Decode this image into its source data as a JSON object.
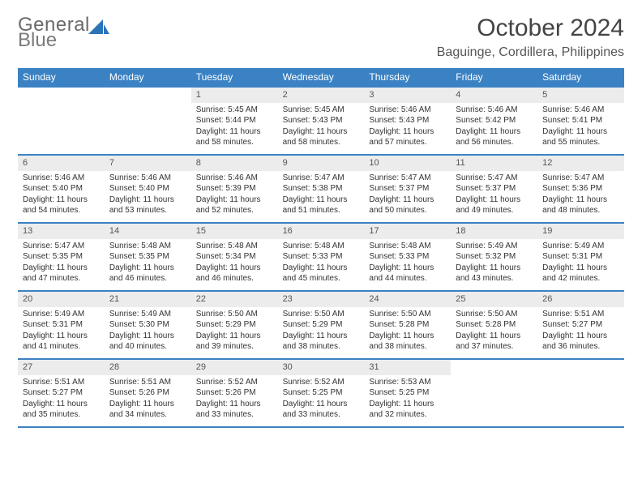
{
  "logo": {
    "word1": "General",
    "word2": "Blue",
    "shape_color": "#2b74b8"
  },
  "title": "October 2024",
  "location": "Baguinge, Cordillera, Philippines",
  "colors": {
    "header_bg": "#3b82c4",
    "header_text": "#ffffff",
    "daynum_bg": "#ececec",
    "border": "#3b82c4",
    "body_text": "#333333"
  },
  "dow": [
    "Sunday",
    "Monday",
    "Tuesday",
    "Wednesday",
    "Thursday",
    "Friday",
    "Saturday"
  ],
  "weeks": [
    [
      {
        "n": "",
        "sr": "",
        "ss": "",
        "dl": ""
      },
      {
        "n": "",
        "sr": "",
        "ss": "",
        "dl": ""
      },
      {
        "n": "1",
        "sr": "Sunrise: 5:45 AM",
        "ss": "Sunset: 5:44 PM",
        "dl": "Daylight: 11 hours and 58 minutes."
      },
      {
        "n": "2",
        "sr": "Sunrise: 5:45 AM",
        "ss": "Sunset: 5:43 PM",
        "dl": "Daylight: 11 hours and 58 minutes."
      },
      {
        "n": "3",
        "sr": "Sunrise: 5:46 AM",
        "ss": "Sunset: 5:43 PM",
        "dl": "Daylight: 11 hours and 57 minutes."
      },
      {
        "n": "4",
        "sr": "Sunrise: 5:46 AM",
        "ss": "Sunset: 5:42 PM",
        "dl": "Daylight: 11 hours and 56 minutes."
      },
      {
        "n": "5",
        "sr": "Sunrise: 5:46 AM",
        "ss": "Sunset: 5:41 PM",
        "dl": "Daylight: 11 hours and 55 minutes."
      }
    ],
    [
      {
        "n": "6",
        "sr": "Sunrise: 5:46 AM",
        "ss": "Sunset: 5:40 PM",
        "dl": "Daylight: 11 hours and 54 minutes."
      },
      {
        "n": "7",
        "sr": "Sunrise: 5:46 AM",
        "ss": "Sunset: 5:40 PM",
        "dl": "Daylight: 11 hours and 53 minutes."
      },
      {
        "n": "8",
        "sr": "Sunrise: 5:46 AM",
        "ss": "Sunset: 5:39 PM",
        "dl": "Daylight: 11 hours and 52 minutes."
      },
      {
        "n": "9",
        "sr": "Sunrise: 5:47 AM",
        "ss": "Sunset: 5:38 PM",
        "dl": "Daylight: 11 hours and 51 minutes."
      },
      {
        "n": "10",
        "sr": "Sunrise: 5:47 AM",
        "ss": "Sunset: 5:37 PM",
        "dl": "Daylight: 11 hours and 50 minutes."
      },
      {
        "n": "11",
        "sr": "Sunrise: 5:47 AM",
        "ss": "Sunset: 5:37 PM",
        "dl": "Daylight: 11 hours and 49 minutes."
      },
      {
        "n": "12",
        "sr": "Sunrise: 5:47 AM",
        "ss": "Sunset: 5:36 PM",
        "dl": "Daylight: 11 hours and 48 minutes."
      }
    ],
    [
      {
        "n": "13",
        "sr": "Sunrise: 5:47 AM",
        "ss": "Sunset: 5:35 PM",
        "dl": "Daylight: 11 hours and 47 minutes."
      },
      {
        "n": "14",
        "sr": "Sunrise: 5:48 AM",
        "ss": "Sunset: 5:35 PM",
        "dl": "Daylight: 11 hours and 46 minutes."
      },
      {
        "n": "15",
        "sr": "Sunrise: 5:48 AM",
        "ss": "Sunset: 5:34 PM",
        "dl": "Daylight: 11 hours and 46 minutes."
      },
      {
        "n": "16",
        "sr": "Sunrise: 5:48 AM",
        "ss": "Sunset: 5:33 PM",
        "dl": "Daylight: 11 hours and 45 minutes."
      },
      {
        "n": "17",
        "sr": "Sunrise: 5:48 AM",
        "ss": "Sunset: 5:33 PM",
        "dl": "Daylight: 11 hours and 44 minutes."
      },
      {
        "n": "18",
        "sr": "Sunrise: 5:49 AM",
        "ss": "Sunset: 5:32 PM",
        "dl": "Daylight: 11 hours and 43 minutes."
      },
      {
        "n": "19",
        "sr": "Sunrise: 5:49 AM",
        "ss": "Sunset: 5:31 PM",
        "dl": "Daylight: 11 hours and 42 minutes."
      }
    ],
    [
      {
        "n": "20",
        "sr": "Sunrise: 5:49 AM",
        "ss": "Sunset: 5:31 PM",
        "dl": "Daylight: 11 hours and 41 minutes."
      },
      {
        "n": "21",
        "sr": "Sunrise: 5:49 AM",
        "ss": "Sunset: 5:30 PM",
        "dl": "Daylight: 11 hours and 40 minutes."
      },
      {
        "n": "22",
        "sr": "Sunrise: 5:50 AM",
        "ss": "Sunset: 5:29 PM",
        "dl": "Daylight: 11 hours and 39 minutes."
      },
      {
        "n": "23",
        "sr": "Sunrise: 5:50 AM",
        "ss": "Sunset: 5:29 PM",
        "dl": "Daylight: 11 hours and 38 minutes."
      },
      {
        "n": "24",
        "sr": "Sunrise: 5:50 AM",
        "ss": "Sunset: 5:28 PM",
        "dl": "Daylight: 11 hours and 38 minutes."
      },
      {
        "n": "25",
        "sr": "Sunrise: 5:50 AM",
        "ss": "Sunset: 5:28 PM",
        "dl": "Daylight: 11 hours and 37 minutes."
      },
      {
        "n": "26",
        "sr": "Sunrise: 5:51 AM",
        "ss": "Sunset: 5:27 PM",
        "dl": "Daylight: 11 hours and 36 minutes."
      }
    ],
    [
      {
        "n": "27",
        "sr": "Sunrise: 5:51 AM",
        "ss": "Sunset: 5:27 PM",
        "dl": "Daylight: 11 hours and 35 minutes."
      },
      {
        "n": "28",
        "sr": "Sunrise: 5:51 AM",
        "ss": "Sunset: 5:26 PM",
        "dl": "Daylight: 11 hours and 34 minutes."
      },
      {
        "n": "29",
        "sr": "Sunrise: 5:52 AM",
        "ss": "Sunset: 5:26 PM",
        "dl": "Daylight: 11 hours and 33 minutes."
      },
      {
        "n": "30",
        "sr": "Sunrise: 5:52 AM",
        "ss": "Sunset: 5:25 PM",
        "dl": "Daylight: 11 hours and 33 minutes."
      },
      {
        "n": "31",
        "sr": "Sunrise: 5:53 AM",
        "ss": "Sunset: 5:25 PM",
        "dl": "Daylight: 11 hours and 32 minutes."
      },
      {
        "n": "",
        "sr": "",
        "ss": "",
        "dl": ""
      },
      {
        "n": "",
        "sr": "",
        "ss": "",
        "dl": ""
      }
    ]
  ]
}
